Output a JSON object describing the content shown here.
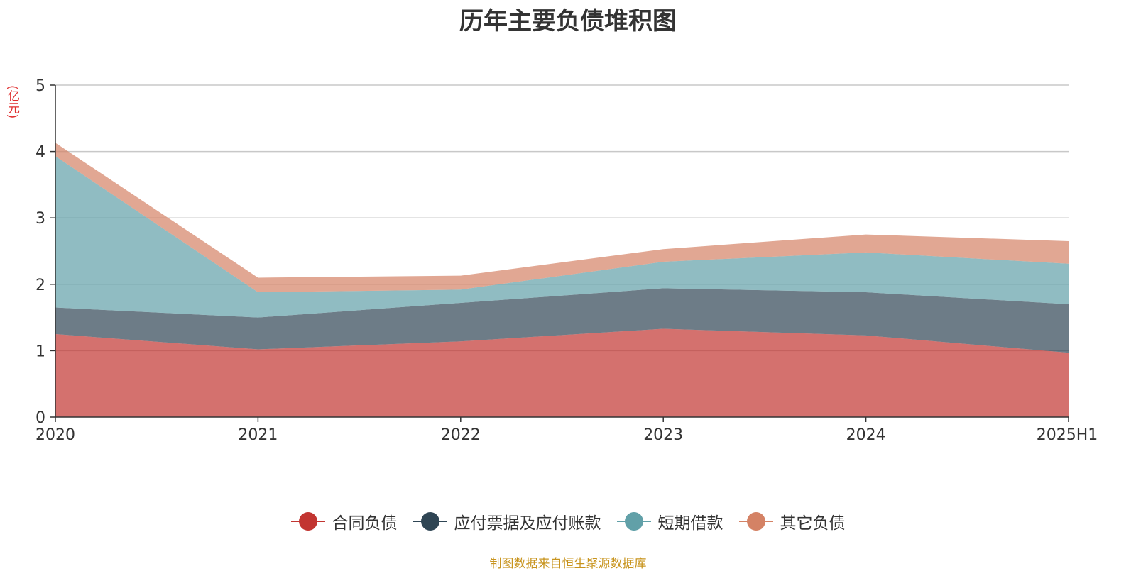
{
  "title": "历年主要负债堆积图",
  "unit_label": "(亿元)",
  "source": "制图数据来自恒生聚源数据库",
  "chart_data": {
    "type": "area",
    "stacked": true,
    "title": "历年主要负债堆积图",
    "ylabel": "(亿元)",
    "xlabel": "",
    "categories": [
      "2020",
      "2021",
      "2022",
      "2023",
      "2024",
      "2025H1"
    ],
    "ylim": [
      0,
      5
    ],
    "yticks": [
      0,
      1,
      2,
      3,
      4,
      5
    ],
    "grid": true,
    "legend_position": "bottom",
    "series": [
      {
        "name": "合同负债",
        "color": "#c23531",
        "values": [
          1.25,
          1.02,
          1.14,
          1.33,
          1.23,
          0.97
        ]
      },
      {
        "name": "应付票据及应付账款",
        "color": "#2f4554",
        "values": [
          0.4,
          0.48,
          0.58,
          0.61,
          0.65,
          0.73
        ]
      },
      {
        "name": "短期借款",
        "color": "#61a0a8",
        "values": [
          2.28,
          0.38,
          0.2,
          0.4,
          0.6,
          0.61
        ]
      },
      {
        "name": "其它负债",
        "color": "#d48265",
        "values": [
          0.2,
          0.22,
          0.21,
          0.19,
          0.27,
          0.34
        ]
      }
    ]
  }
}
